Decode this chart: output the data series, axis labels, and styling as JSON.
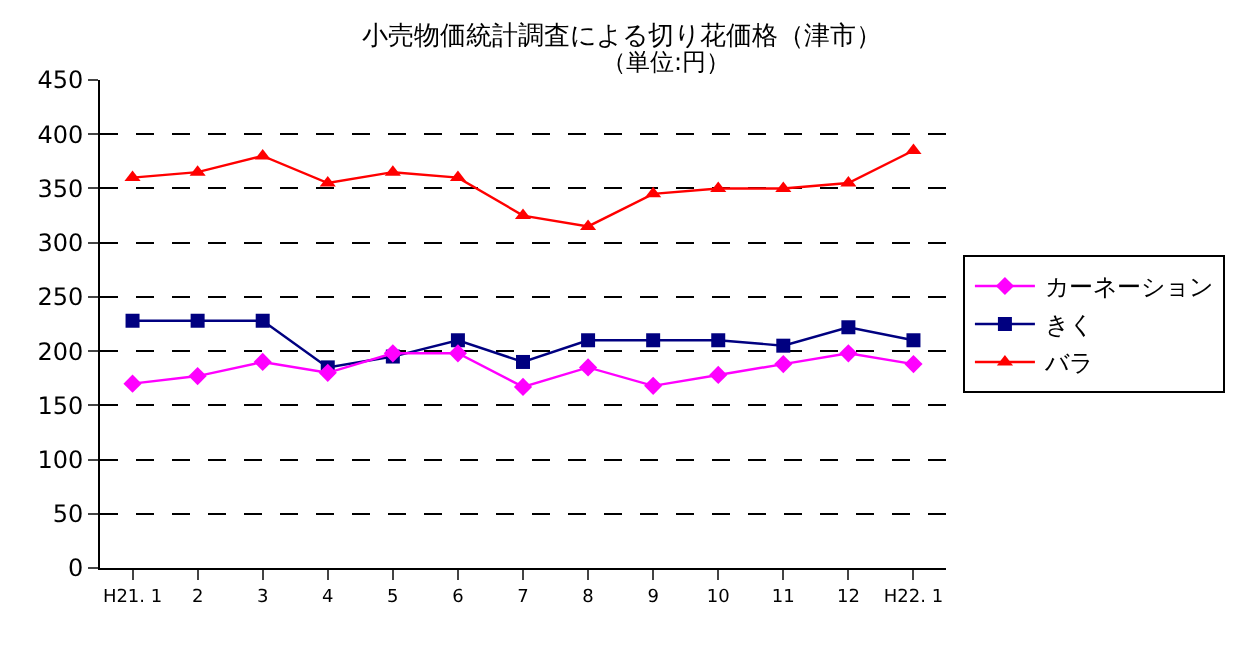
{
  "chart_data": {
    "type": "line",
    "title": "小売物価統計調査による切り花価格（津市）",
    "annotations": [
      "（単位:円）"
    ],
    "categories": [
      "H21. 1",
      "2",
      "3",
      "4",
      "5",
      "6",
      "7",
      "8",
      "9",
      "10",
      "11",
      "12",
      "H22. 1"
    ],
    "series": [
      {
        "name": "カーネーション",
        "color": "#ff00ff",
        "marker": "diamond",
        "values": [
          170,
          177,
          190,
          180,
          198,
          198,
          167,
          185,
          168,
          178,
          188,
          198,
          188
        ]
      },
      {
        "name": "きく",
        "color": "#000080",
        "marker": "square",
        "values": [
          228,
          228,
          228,
          185,
          195,
          210,
          190,
          210,
          210,
          210,
          205,
          222,
          210
        ]
      },
      {
        "name": "バラ",
        "color": "#ff0000",
        "marker": "triangle",
        "values": [
          360,
          365,
          380,
          355,
          365,
          360,
          325,
          315,
          345,
          350,
          350,
          355,
          385
        ]
      }
    ],
    "ylim": [
      0,
      450
    ],
    "yticks": [
      0,
      50,
      100,
      150,
      200,
      250,
      300,
      350,
      400,
      450
    ],
    "grid": "y",
    "legend": "right"
  }
}
